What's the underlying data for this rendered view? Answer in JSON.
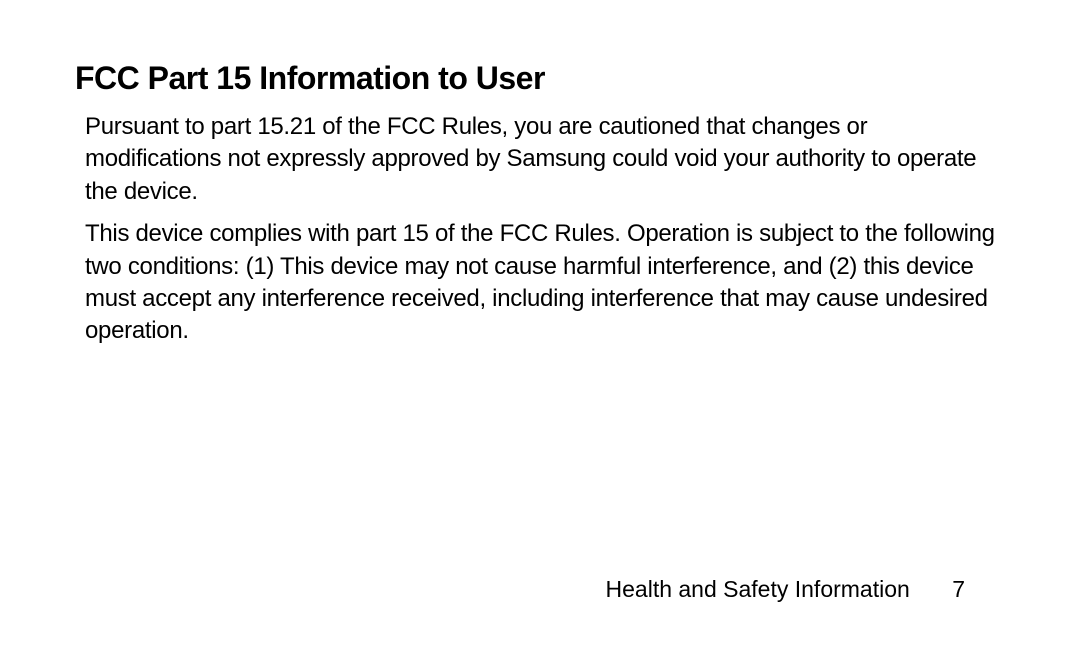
{
  "document": {
    "heading": "FCC Part 15 Information to User",
    "paragraphs": [
      "Pursuant to part 15.21 of the FCC Rules, you are cautioned that changes or modifications not expressly approved by Samsung could void your authority to operate the device.",
      "This device complies with part 15 of the FCC Rules. Operation is subject to the following two conditions: (1) This device may not cause harmful interference, and (2) this device must accept any interference received, including interference that may cause undesired operation."
    ],
    "footer": {
      "section_title": "Health and Safety Information",
      "page_number": "7"
    },
    "colors": {
      "background": "#ffffff",
      "text": "#000000"
    },
    "typography": {
      "heading_fontsize": 32,
      "heading_weight": 900,
      "body_fontsize": 24,
      "footer_fontsize": 23
    }
  }
}
